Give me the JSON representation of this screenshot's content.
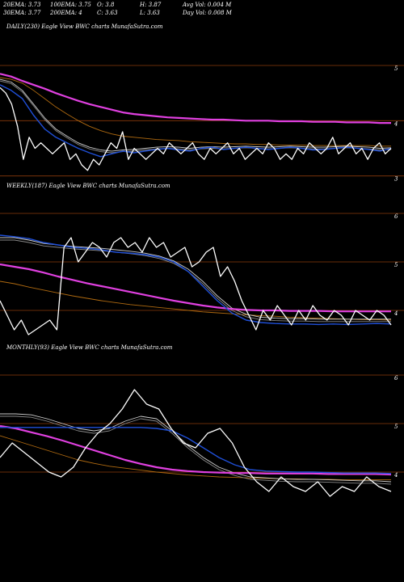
{
  "header": {
    "ema20": "20EMA: 3.73",
    "ema100": "100EMA: 3.75",
    "open": "O: 3.8",
    "high": "H: 3.87",
    "avg_vol": "Avg Vol: 0.004  M",
    "ema30": "30EMA: 3.77",
    "ema200": "200EMA: 4",
    "close": "C: 3.63",
    "low": "L: 3.63",
    "day_vol": "Day Vol: 0.008  M"
  },
  "colors": {
    "background": "#000000",
    "price": "#ffffff",
    "ema_short": "#1f4fd8",
    "ema_long": "#e040e0",
    "ema_mid": "#b06a10",
    "band_a": "#cccccc",
    "band_b": "#888888",
    "gridline": "#8b3a0a"
  },
  "chart_data": [
    {
      "type": "line",
      "title": "DAILY(230) Eagle   View  BWC charts MunafaSutra.com",
      "yticks": [
        "5",
        "4",
        "3"
      ],
      "ylim": [
        2.6,
        5.6
      ],
      "grid": true,
      "series": [
        {
          "role": "price",
          "values": [
            4.6,
            4.5,
            4.3,
            3.9,
            3.3,
            3.7,
            3.5,
            3.6,
            3.5,
            3.4,
            3.5,
            3.6,
            3.3,
            3.4,
            3.2,
            3.1,
            3.3,
            3.2,
            3.4,
            3.6,
            3.5,
            3.8,
            3.3,
            3.5,
            3.4,
            3.3,
            3.4,
            3.5,
            3.4,
            3.6,
            3.5,
            3.4,
            3.5,
            3.6,
            3.4,
            3.3,
            3.5,
            3.4,
            3.5,
            3.6,
            3.4,
            3.5,
            3.3,
            3.4,
            3.5,
            3.4,
            3.6,
            3.5,
            3.3,
            3.4,
            3.3,
            3.5,
            3.4,
            3.6,
            3.5,
            3.4,
            3.5,
            3.7,
            3.4,
            3.5,
            3.6,
            3.4,
            3.5,
            3.3,
            3.5,
            3.6,
            3.4,
            3.5
          ]
        },
        {
          "role": "ema_short",
          "values": [
            4.65,
            4.55,
            4.4,
            4.1,
            3.85,
            3.7,
            3.6,
            3.5,
            3.42,
            3.35,
            3.4,
            3.45,
            3.42,
            3.45,
            3.48,
            3.5,
            3.47,
            3.45,
            3.5,
            3.52,
            3.48,
            3.5,
            3.52,
            3.5,
            3.48,
            3.5,
            3.52,
            3.5,
            3.47,
            3.48,
            3.5,
            3.52,
            3.5,
            3.48,
            3.45,
            3.5
          ]
        },
        {
          "role": "band_a",
          "values": [
            4.75,
            4.7,
            4.55,
            4.3,
            4.05,
            3.85,
            3.72,
            3.6,
            3.52,
            3.47,
            3.45,
            3.47,
            3.48,
            3.5,
            3.52,
            3.53,
            3.52,
            3.5,
            3.52,
            3.53,
            3.52,
            3.53,
            3.54,
            3.53,
            3.52,
            3.53,
            3.54,
            3.53,
            3.52,
            3.52,
            3.53,
            3.54,
            3.53,
            3.52,
            3.5,
            3.51
          ]
        },
        {
          "role": "band_b",
          "values": [
            4.72,
            4.67,
            4.52,
            4.27,
            4.02,
            3.82,
            3.69,
            3.57,
            3.49,
            3.44,
            3.42,
            3.44,
            3.45,
            3.47,
            3.49,
            3.5,
            3.49,
            3.47,
            3.49,
            3.5,
            3.49,
            3.5,
            3.51,
            3.5,
            3.49,
            3.5,
            3.51,
            3.5,
            3.49,
            3.49,
            3.5,
            3.51,
            3.5,
            3.49,
            3.47,
            3.48
          ]
        },
        {
          "role": "ema_mid",
          "values": [
            4.78,
            4.75,
            4.68,
            4.55,
            4.4,
            4.25,
            4.12,
            4.0,
            3.9,
            3.82,
            3.76,
            3.72,
            3.7,
            3.68,
            3.66,
            3.65,
            3.64,
            3.62,
            3.61,
            3.6,
            3.59,
            3.58,
            3.58,
            3.57,
            3.57,
            3.56,
            3.56,
            3.56,
            3.55,
            3.55,
            3.55,
            3.55,
            3.55,
            3.55,
            3.54,
            3.54
          ]
        },
        {
          "role": "ema_long",
          "values": [
            4.85,
            4.8,
            4.72,
            4.65,
            4.58,
            4.5,
            4.43,
            4.36,
            4.3,
            4.25,
            4.2,
            4.15,
            4.12,
            4.1,
            4.08,
            4.06,
            4.05,
            4.04,
            4.03,
            4.02,
            4.02,
            4.01,
            4.0,
            4.0,
            4.0,
            3.99,
            3.99,
            3.99,
            3.98,
            3.98,
            3.98,
            3.97,
            3.97,
            3.97,
            3.96,
            3.96
          ]
        }
      ]
    },
    {
      "type": "line",
      "title": "WEEKLY(187) Eagle   View  BWC charts MunafaSutra.com",
      "yticks": [
        "6",
        "5",
        "4"
      ],
      "ylim": [
        3.4,
        6.4
      ],
      "grid": true,
      "series": [
        {
          "role": "price",
          "values": [
            4.2,
            3.9,
            3.6,
            3.8,
            3.5,
            3.6,
            3.7,
            3.8,
            3.6,
            5.3,
            5.5,
            5.0,
            5.2,
            5.4,
            5.3,
            5.1,
            5.4,
            5.5,
            5.3,
            5.4,
            5.2,
            5.5,
            5.3,
            5.4,
            5.1,
            5.2,
            5.3,
            4.9,
            5.0,
            5.2,
            5.3,
            4.7,
            4.9,
            4.6,
            4.2,
            3.9,
            3.6,
            4.0,
            3.8,
            4.1,
            3.9,
            3.7,
            4.0,
            3.8,
            4.1,
            3.9,
            3.8,
            4.0,
            3.9,
            3.7,
            4.0,
            3.9,
            3.8,
            4.0,
            3.9,
            3.7
          ]
        },
        {
          "role": "ema_short",
          "values": [
            5.55,
            5.52,
            5.48,
            5.4,
            5.35,
            5.3,
            5.28,
            5.25,
            5.2,
            5.18,
            5.15,
            5.1,
            5.0,
            4.8,
            4.5,
            4.2,
            3.95,
            3.8,
            3.75,
            3.73,
            3.72,
            3.72,
            3.71,
            3.72,
            3.71,
            3.72,
            3.73,
            3.72
          ]
        },
        {
          "role": "band_a",
          "values": [
            5.5,
            5.5,
            5.45,
            5.38,
            5.35,
            5.32,
            5.3,
            5.28,
            5.25,
            5.22,
            5.18,
            5.12,
            5.02,
            4.85,
            4.6,
            4.3,
            4.05,
            3.92,
            3.86,
            3.84,
            3.83,
            3.83,
            3.82,
            3.82,
            3.82,
            3.82,
            3.82,
            3.82
          ]
        },
        {
          "role": "band_b",
          "values": [
            5.45,
            5.45,
            5.4,
            5.33,
            5.3,
            5.27,
            5.25,
            5.23,
            5.2,
            5.17,
            5.13,
            5.07,
            4.97,
            4.8,
            4.55,
            4.25,
            4.0,
            3.87,
            3.81,
            3.79,
            3.78,
            3.78,
            3.77,
            3.77,
            3.77,
            3.77,
            3.77,
            3.77
          ]
        },
        {
          "role": "ema_mid",
          "values": [
            4.6,
            4.55,
            4.48,
            4.42,
            4.36,
            4.3,
            4.25,
            4.2,
            4.16,
            4.12,
            4.09,
            4.06,
            4.03,
            4.0,
            3.97,
            3.95,
            3.93,
            3.91,
            3.89,
            3.88,
            3.86,
            3.85,
            3.84,
            3.83,
            3.82,
            3.81,
            3.81,
            3.8
          ]
        },
        {
          "role": "ema_long",
          "values": [
            4.95,
            4.9,
            4.85,
            4.78,
            4.7,
            4.63,
            4.56,
            4.5,
            4.44,
            4.38,
            4.32,
            4.26,
            4.2,
            4.15,
            4.1,
            4.06,
            4.03,
            4.01,
            4.0,
            4.0,
            3.99,
            3.99,
            3.99,
            3.98,
            3.98,
            3.98,
            3.98,
            3.98
          ]
        }
      ]
    },
    {
      "type": "line",
      "title": "MONTHLY(93) Eagle   View  BWC charts MunafaSutra.com",
      "yticks": [
        "6",
        "5",
        "4"
      ],
      "ylim": [
        3.4,
        6.4
      ],
      "grid": true,
      "series": [
        {
          "role": "price",
          "values": [
            4.3,
            4.6,
            4.4,
            4.2,
            4.0,
            3.9,
            4.1,
            4.5,
            4.8,
            5.0,
            5.3,
            5.7,
            5.4,
            5.3,
            4.9,
            4.6,
            4.5,
            4.8,
            4.9,
            4.6,
            4.1,
            3.8,
            3.6,
            3.9,
            3.7,
            3.6,
            3.8,
            3.5,
            3.7,
            3.6,
            3.9,
            3.7,
            3.6
          ]
        },
        {
          "role": "ema_short",
          "values": [
            4.92,
            4.92,
            4.92,
            4.92,
            4.92,
            4.92,
            4.92,
            4.92,
            4.92,
            4.92,
            4.9,
            4.85,
            4.7,
            4.5,
            4.3,
            4.15,
            4.05,
            4.02,
            4.01,
            4.0,
            4.0,
            3.99,
            3.98,
            3.98,
            3.98,
            3.97
          ]
        },
        {
          "role": "band_a",
          "values": [
            5.2,
            5.2,
            5.18,
            5.1,
            5.0,
            4.9,
            4.85,
            4.9,
            5.05,
            5.15,
            5.1,
            4.85,
            4.55,
            4.3,
            4.1,
            3.98,
            3.9,
            3.88,
            3.86,
            3.85,
            3.85,
            3.84,
            3.83,
            3.82,
            3.82,
            3.8
          ]
        },
        {
          "role": "band_b",
          "values": [
            5.15,
            5.15,
            5.13,
            5.05,
            4.95,
            4.85,
            4.8,
            4.85,
            5.0,
            5.1,
            5.05,
            4.8,
            4.5,
            4.25,
            4.05,
            3.93,
            3.85,
            3.83,
            3.81,
            3.8,
            3.8,
            3.79,
            3.78,
            3.77,
            3.77,
            3.75
          ]
        },
        {
          "role": "ema_mid",
          "values": [
            4.75,
            4.65,
            4.55,
            4.45,
            4.35,
            4.25,
            4.18,
            4.12,
            4.08,
            4.04,
            4.0,
            3.97,
            3.94,
            3.92,
            3.9,
            3.89,
            3.88,
            3.87,
            3.86,
            3.86,
            3.85,
            3.85,
            3.84,
            3.84,
            3.84,
            3.84
          ]
        },
        {
          "role": "ema_long",
          "values": [
            4.95,
            4.9,
            4.82,
            4.74,
            4.65,
            4.55,
            4.45,
            4.35,
            4.25,
            4.17,
            4.1,
            4.05,
            4.02,
            4.0,
            3.99,
            3.98,
            3.98,
            3.97,
            3.97,
            3.97,
            3.97,
            3.96,
            3.96,
            3.96,
            3.96,
            3.95
          ]
        }
      ]
    }
  ]
}
